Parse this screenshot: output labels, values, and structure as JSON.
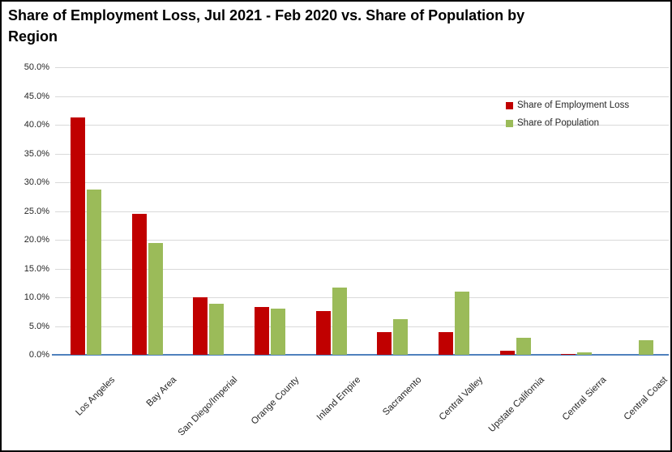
{
  "title": "Share of Employment Loss, Jul 2021 - Feb 2020 vs. Share of Population by Region",
  "legend": {
    "items": [
      {
        "label": "Share of Employment Loss",
        "color": "#c00000"
      },
      {
        "label": "Share of Population",
        "color": "#9bbb59"
      }
    ]
  },
  "chart_data": {
    "type": "bar",
    "title": "Share of Employment Loss, Jul 2021 - Feb 2020 vs. Share of Population by Region",
    "categories": [
      "Los Angeles",
      "Bay Area",
      "San Diego/Imperial",
      "Orange County",
      "Inland Empire",
      "Sacramento",
      "Central Valley",
      "Upstate California",
      "Central Sierra",
      "Central Coast"
    ],
    "series": [
      {
        "name": "Share of Employment Loss",
        "color": "#c00000",
        "values": [
          41.3,
          24.5,
          10.0,
          8.3,
          7.6,
          4.0,
          4.0,
          0.7,
          0.2,
          0.0
        ]
      },
      {
        "name": "Share of Population",
        "color": "#9bbb59",
        "values": [
          28.7,
          19.5,
          8.9,
          8.0,
          11.7,
          6.2,
          11.0,
          2.9,
          0.4,
          2.6
        ]
      }
    ],
    "xlabel": "",
    "ylabel": "",
    "ylim": [
      0,
      50
    ],
    "ytick_step": 5,
    "ytick_labels": [
      "0.0%",
      "5.0%",
      "10.0%",
      "15.0%",
      "20.0%",
      "25.0%",
      "30.0%",
      "35.0%",
      "40.0%",
      "45.0%",
      "50.0%"
    ],
    "grid": true,
    "gridline_color": "#d9d9d9",
    "axis_line_color": "#4f81bd",
    "legend_position": "upper-right"
  }
}
